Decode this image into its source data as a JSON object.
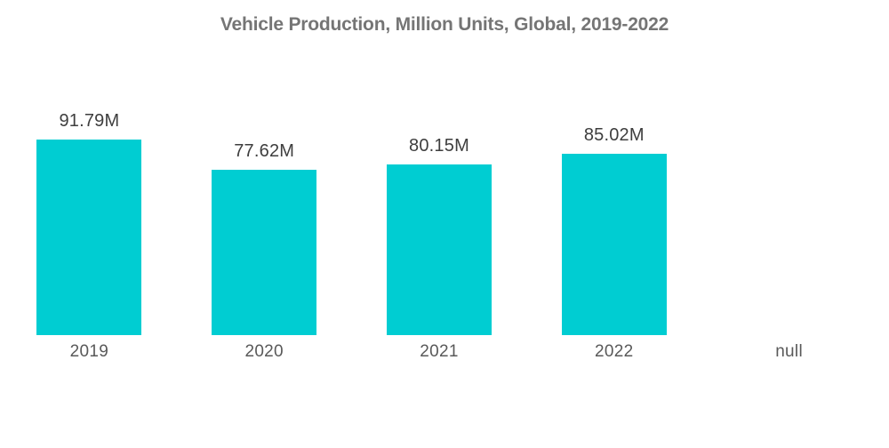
{
  "colors": {
    "bar": "#00CDD2",
    "title": "#757575",
    "value": "#3E3E3E",
    "category": "#595959",
    "background": "#FFFFFF"
  },
  "chart_data": {
    "type": "bar",
    "title": "Vehicle Production, Million Units, Global, 2019-2022",
    "categories": [
      "2019",
      "2020",
      "2021",
      "2022",
      "null"
    ],
    "values": [
      91.79,
      77.62,
      80.15,
      85.02,
      null
    ],
    "value_labels": [
      "91.79M",
      "77.62M",
      "80.15M",
      "85.02M",
      ""
    ],
    "series_name": "Vehicle Production",
    "unit": "Million Units",
    "xlabel": "",
    "ylabel": "",
    "ylim": [
      0,
      100
    ],
    "grid": false,
    "legend": false,
    "bar_color": "#00CDD2"
  }
}
